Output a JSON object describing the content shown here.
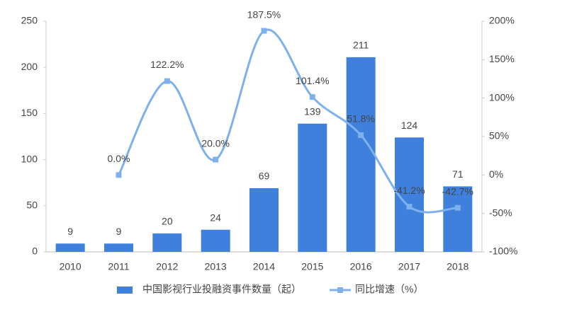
{
  "chart_data": {
    "type": "bar",
    "categories": [
      "2010",
      "2011",
      "2012",
      "2013",
      "2014",
      "2015",
      "2016",
      "2017",
      "2018"
    ],
    "series": [
      {
        "name": "中国影视行业投融资事件数量（起）",
        "color": "#3f80dc",
        "type": "bar",
        "values": [
          9,
          9,
          20,
          24,
          69,
          139,
          211,
          124,
          71
        ]
      },
      {
        "name": "同比增速（%）",
        "color": "#7eb1ec",
        "type": "line",
        "axis": "y2",
        "values": [
          null,
          0,
          122.2,
          20,
          187.5,
          101.4,
          51.8,
          -41.2,
          -42.7
        ],
        "value_labels": [
          null,
          "0.0%",
          "122.2%",
          "20.0%",
          "187.5%",
          "101.4%",
          "51.8%",
          "-41.2%",
          "-42.7%"
        ]
      }
    ],
    "ylim": [
      0,
      250
    ],
    "yticks": [
      0,
      50,
      100,
      150,
      200,
      250
    ],
    "y2lim": [
      -100,
      200
    ],
    "y2ticks": [
      {
        "value": -100,
        "label": "-100%"
      },
      {
        "value": -50,
        "label": "-50%"
      },
      {
        "value": 0,
        "label": "0%"
      },
      {
        "value": 50,
        "label": "50%"
      },
      {
        "value": 100,
        "label": "100%"
      },
      {
        "value": 150,
        "label": "150%"
      },
      {
        "value": 200,
        "label": "200%"
      }
    ],
    "grid": false,
    "legend": "bottom"
  }
}
